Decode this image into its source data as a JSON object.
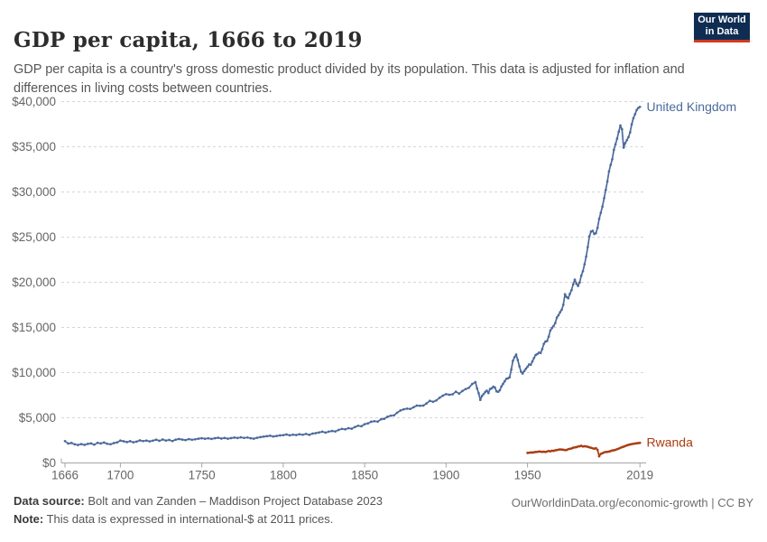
{
  "header": {
    "title": "GDP per capita, 1666 to 2019",
    "subtitle": "GDP per capita is a country's gross domestic product divided by its population. This data is adjusted for inflation and differences in living costs between countries.",
    "logo": {
      "line1": "Our World",
      "line2": "in Data",
      "bg_color": "#0f2d52",
      "accent_color": "#d2391f"
    }
  },
  "chart_data": {
    "type": "line",
    "title": "GDP per capita, 1666 to 2019",
    "xlabel": "",
    "ylabel": "",
    "xlim": [
      1666,
      2019
    ],
    "ylim": [
      0,
      40000
    ],
    "grid": "horizontal-dashed",
    "legend_position": "end-of-line labels",
    "x_ticks": [
      1666,
      1700,
      1750,
      1800,
      1850,
      1900,
      1950,
      2019
    ],
    "y_ticks": [
      0,
      5000,
      10000,
      15000,
      20000,
      25000,
      30000,
      35000,
      40000
    ],
    "y_tick_labels": [
      "$0",
      "$5,000",
      "$10,000",
      "$15,000",
      "$20,000",
      "$25,000",
      "$30,000",
      "$35,000",
      "$40,000"
    ],
    "colors": {
      "grid": "#d6d6d6",
      "axis": "#a5a5a5",
      "tick_text": "#666666"
    },
    "series": [
      {
        "name": "United Kingdom",
        "color": "#4c6a9c",
        "points": [
          [
            1666,
            2420
          ],
          [
            1668,
            2150
          ],
          [
            1670,
            2210
          ],
          [
            1672,
            2060
          ],
          [
            1674,
            1990
          ],
          [
            1676,
            2090
          ],
          [
            1678,
            2000
          ],
          [
            1680,
            2110
          ],
          [
            1682,
            2160
          ],
          [
            1684,
            2020
          ],
          [
            1686,
            2230
          ],
          [
            1688,
            2160
          ],
          [
            1690,
            2260
          ],
          [
            1692,
            2120
          ],
          [
            1694,
            2070
          ],
          [
            1696,
            2200
          ],
          [
            1698,
            2280
          ],
          [
            1700,
            2480
          ],
          [
            1702,
            2400
          ],
          [
            1704,
            2310
          ],
          [
            1706,
            2410
          ],
          [
            1708,
            2290
          ],
          [
            1710,
            2360
          ],
          [
            1712,
            2500
          ],
          [
            1714,
            2420
          ],
          [
            1716,
            2480
          ],
          [
            1718,
            2390
          ],
          [
            1720,
            2470
          ],
          [
            1722,
            2580
          ],
          [
            1724,
            2450
          ],
          [
            1726,
            2600
          ],
          [
            1728,
            2480
          ],
          [
            1730,
            2550
          ],
          [
            1732,
            2430
          ],
          [
            1734,
            2580
          ],
          [
            1736,
            2650
          ],
          [
            1738,
            2590
          ],
          [
            1740,
            2530
          ],
          [
            1742,
            2640
          ],
          [
            1744,
            2570
          ],
          [
            1746,
            2620
          ],
          [
            1748,
            2690
          ],
          [
            1750,
            2740
          ],
          [
            1752,
            2680
          ],
          [
            1754,
            2730
          ],
          [
            1756,
            2660
          ],
          [
            1758,
            2740
          ],
          [
            1760,
            2790
          ],
          [
            1762,
            2700
          ],
          [
            1764,
            2760
          ],
          [
            1766,
            2690
          ],
          [
            1768,
            2750
          ],
          [
            1770,
            2810
          ],
          [
            1772,
            2760
          ],
          [
            1774,
            2840
          ],
          [
            1776,
            2770
          ],
          [
            1778,
            2820
          ],
          [
            1780,
            2740
          ],
          [
            1782,
            2690
          ],
          [
            1784,
            2790
          ],
          [
            1786,
            2860
          ],
          [
            1788,
            2910
          ],
          [
            1790,
            2960
          ],
          [
            1792,
            3010
          ],
          [
            1794,
            2930
          ],
          [
            1796,
            2990
          ],
          [
            1798,
            3050
          ],
          [
            1800,
            3080
          ],
          [
            1802,
            3150
          ],
          [
            1804,
            3060
          ],
          [
            1806,
            3130
          ],
          [
            1808,
            3090
          ],
          [
            1810,
            3180
          ],
          [
            1812,
            3120
          ],
          [
            1814,
            3220
          ],
          [
            1816,
            3110
          ],
          [
            1818,
            3250
          ],
          [
            1820,
            3300
          ],
          [
            1822,
            3380
          ],
          [
            1824,
            3460
          ],
          [
            1826,
            3360
          ],
          [
            1828,
            3470
          ],
          [
            1830,
            3540
          ],
          [
            1832,
            3490
          ],
          [
            1834,
            3650
          ],
          [
            1836,
            3770
          ],
          [
            1838,
            3720
          ],
          [
            1840,
            3850
          ],
          [
            1842,
            3790
          ],
          [
            1844,
            3980
          ],
          [
            1846,
            4120
          ],
          [
            1848,
            4060
          ],
          [
            1850,
            4290
          ],
          [
            1852,
            4380
          ],
          [
            1854,
            4560
          ],
          [
            1856,
            4620
          ],
          [
            1858,
            4580
          ],
          [
            1860,
            4830
          ],
          [
            1862,
            4890
          ],
          [
            1864,
            5110
          ],
          [
            1866,
            5230
          ],
          [
            1868,
            5270
          ],
          [
            1870,
            5570
          ],
          [
            1872,
            5810
          ],
          [
            1874,
            5940
          ],
          [
            1876,
            6010
          ],
          [
            1878,
            5980
          ],
          [
            1880,
            6160
          ],
          [
            1882,
            6350
          ],
          [
            1884,
            6330
          ],
          [
            1886,
            6350
          ],
          [
            1888,
            6590
          ],
          [
            1890,
            6880
          ],
          [
            1892,
            6770
          ],
          [
            1894,
            6920
          ],
          [
            1896,
            7210
          ],
          [
            1898,
            7450
          ],
          [
            1900,
            7620
          ],
          [
            1902,
            7550
          ],
          [
            1904,
            7600
          ],
          [
            1906,
            7890
          ],
          [
            1908,
            7680
          ],
          [
            1910,
            7960
          ],
          [
            1912,
            8180
          ],
          [
            1914,
            8320
          ],
          [
            1916,
            8740
          ],
          [
            1918,
            8950
          ],
          [
            1919,
            8250
          ],
          [
            1920,
            7710
          ],
          [
            1921,
            6980
          ],
          [
            1922,
            7410
          ],
          [
            1923,
            7620
          ],
          [
            1924,
            7850
          ],
          [
            1925,
            8000
          ],
          [
            1926,
            7740
          ],
          [
            1927,
            8190
          ],
          [
            1928,
            8260
          ],
          [
            1929,
            8440
          ],
          [
            1930,
            8350
          ],
          [
            1931,
            7920
          ],
          [
            1932,
            7880
          ],
          [
            1933,
            8050
          ],
          [
            1934,
            8480
          ],
          [
            1935,
            8750
          ],
          [
            1936,
            9040
          ],
          [
            1937,
            9320
          ],
          [
            1938,
            9370
          ],
          [
            1939,
            9490
          ],
          [
            1940,
            10340
          ],
          [
            1941,
            11300
          ],
          [
            1942,
            11700
          ],
          [
            1943,
            12000
          ],
          [
            1944,
            11400
          ],
          [
            1945,
            10700
          ],
          [
            1946,
            10100
          ],
          [
            1947,
            9900
          ],
          [
            1948,
            10180
          ],
          [
            1949,
            10430
          ],
          [
            1950,
            10650
          ],
          [
            1951,
            10900
          ],
          [
            1952,
            10880
          ],
          [
            1953,
            11240
          ],
          [
            1954,
            11620
          ],
          [
            1955,
            11950
          ],
          [
            1956,
            12050
          ],
          [
            1957,
            12210
          ],
          [
            1958,
            12170
          ],
          [
            1959,
            12600
          ],
          [
            1960,
            13190
          ],
          [
            1961,
            13440
          ],
          [
            1962,
            13500
          ],
          [
            1963,
            13990
          ],
          [
            1964,
            14660
          ],
          [
            1965,
            14940
          ],
          [
            1966,
            15160
          ],
          [
            1967,
            15480
          ],
          [
            1968,
            16090
          ],
          [
            1969,
            16350
          ],
          [
            1970,
            16690
          ],
          [
            1971,
            16960
          ],
          [
            1972,
            17510
          ],
          [
            1973,
            18680
          ],
          [
            1974,
            18370
          ],
          [
            1975,
            18230
          ],
          [
            1976,
            18710
          ],
          [
            1977,
            19130
          ],
          [
            1978,
            19770
          ],
          [
            1979,
            20290
          ],
          [
            1980,
            19850
          ],
          [
            1981,
            19600
          ],
          [
            1982,
            19990
          ],
          [
            1983,
            20740
          ],
          [
            1984,
            21230
          ],
          [
            1985,
            21990
          ],
          [
            1986,
            22850
          ],
          [
            1987,
            23910
          ],
          [
            1988,
            25100
          ],
          [
            1989,
            25610
          ],
          [
            1990,
            25700
          ],
          [
            1991,
            25350
          ],
          [
            1992,
            25440
          ],
          [
            1993,
            26030
          ],
          [
            1994,
            27020
          ],
          [
            1995,
            27690
          ],
          [
            1996,
            28380
          ],
          [
            1997,
            29310
          ],
          [
            1998,
            30230
          ],
          [
            1999,
            31160
          ],
          [
            2000,
            32270
          ],
          [
            2001,
            32990
          ],
          [
            2002,
            33610
          ],
          [
            2003,
            34660
          ],
          [
            2004,
            35280
          ],
          [
            2005,
            35900
          ],
          [
            2006,
            36660
          ],
          [
            2007,
            37360
          ],
          [
            2008,
            36940
          ],
          [
            2009,
            34910
          ],
          [
            2010,
            35410
          ],
          [
            2011,
            35740
          ],
          [
            2012,
            36070
          ],
          [
            2013,
            36600
          ],
          [
            2014,
            37490
          ],
          [
            2015,
            38160
          ],
          [
            2016,
            38610
          ],
          [
            2017,
            39080
          ],
          [
            2018,
            39300
          ],
          [
            2019,
            39420
          ]
        ]
      },
      {
        "name": "Rwanda",
        "color": "#aa3c12",
        "points": [
          [
            1950,
            1110
          ],
          [
            1951,
            1130
          ],
          [
            1952,
            1160
          ],
          [
            1953,
            1150
          ],
          [
            1954,
            1190
          ],
          [
            1955,
            1210
          ],
          [
            1956,
            1230
          ],
          [
            1957,
            1260
          ],
          [
            1958,
            1250
          ],
          [
            1959,
            1220
          ],
          [
            1960,
            1250
          ],
          [
            1961,
            1210
          ],
          [
            1962,
            1270
          ],
          [
            1963,
            1330
          ],
          [
            1964,
            1290
          ],
          [
            1965,
            1350
          ],
          [
            1966,
            1340
          ],
          [
            1967,
            1400
          ],
          [
            1968,
            1430
          ],
          [
            1969,
            1470
          ],
          [
            1970,
            1500
          ],
          [
            1971,
            1480
          ],
          [
            1972,
            1460
          ],
          [
            1973,
            1420
          ],
          [
            1974,
            1440
          ],
          [
            1975,
            1520
          ],
          [
            1976,
            1570
          ],
          [
            1977,
            1600
          ],
          [
            1978,
            1690
          ],
          [
            1979,
            1720
          ],
          [
            1980,
            1750
          ],
          [
            1981,
            1820
          ],
          [
            1982,
            1850
          ],
          [
            1983,
            1900
          ],
          [
            1984,
            1820
          ],
          [
            1985,
            1850
          ],
          [
            1986,
            1830
          ],
          [
            1987,
            1790
          ],
          [
            1988,
            1730
          ],
          [
            1989,
            1680
          ],
          [
            1990,
            1620
          ],
          [
            1991,
            1580
          ],
          [
            1992,
            1640
          ],
          [
            1993,
            1450
          ],
          [
            1994,
            740
          ],
          [
            1995,
            1000
          ],
          [
            1996,
            1080
          ],
          [
            1997,
            1170
          ],
          [
            1998,
            1210
          ],
          [
            1999,
            1230
          ],
          [
            2000,
            1260
          ],
          [
            2001,
            1310
          ],
          [
            2002,
            1390
          ],
          [
            2003,
            1400
          ],
          [
            2004,
            1450
          ],
          [
            2005,
            1520
          ],
          [
            2006,
            1590
          ],
          [
            2007,
            1670
          ],
          [
            2008,
            1750
          ],
          [
            2009,
            1800
          ],
          [
            2010,
            1870
          ],
          [
            2011,
            1950
          ],
          [
            2012,
            2000
          ],
          [
            2013,
            2050
          ],
          [
            2014,
            2090
          ],
          [
            2015,
            2120
          ],
          [
            2016,
            2150
          ],
          [
            2017,
            2180
          ],
          [
            2018,
            2200
          ],
          [
            2019,
            2230
          ]
        ]
      }
    ]
  },
  "footer": {
    "source_label": "Data source:",
    "source_text": " Bolt and van Zanden – Maddison Project Database 2023",
    "note_label": "Note:",
    "note_text": " This data is expressed in international-$ at 2011 prices.",
    "credit": "OurWorldinData.org/economic-growth | CC BY"
  }
}
